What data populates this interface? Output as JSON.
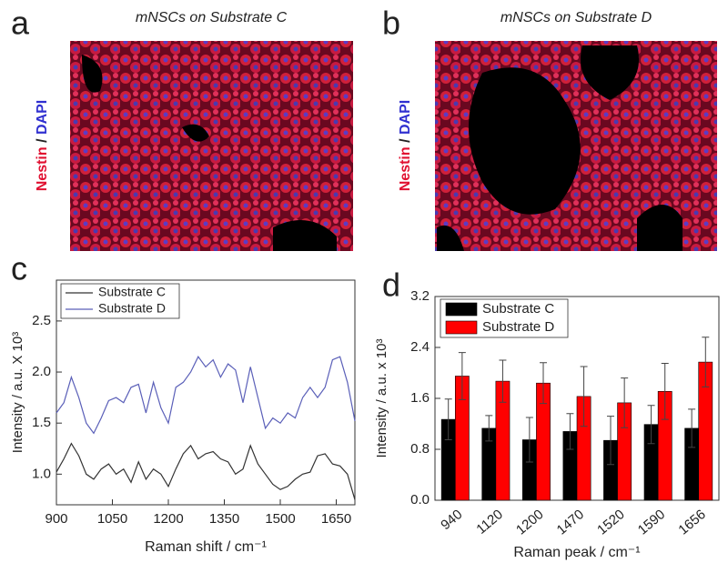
{
  "panels": [
    {
      "letter": "a",
      "title": "mNSCs on Substrate C",
      "stain": [
        "Nestin",
        "/",
        "DAPI"
      ]
    },
    {
      "letter": "b",
      "title": "mNSCs on Substrate D",
      "stain": [
        "Nestin",
        "/",
        "DAPI"
      ]
    }
  ],
  "chart_data": [
    {
      "type": "line",
      "panel": "c",
      "xlabel": "Raman shift / cm⁻¹",
      "ylabel": "Intensity / a.u. X 10³",
      "x": [
        900,
        920,
        940,
        960,
        980,
        1000,
        1020,
        1040,
        1060,
        1080,
        1100,
        1120,
        1140,
        1160,
        1180,
        1200,
        1220,
        1240,
        1260,
        1280,
        1300,
        1320,
        1340,
        1360,
        1380,
        1400,
        1420,
        1440,
        1460,
        1480,
        1500,
        1520,
        1540,
        1560,
        1580,
        1600,
        1620,
        1640,
        1660,
        1680,
        1700
      ],
      "series": [
        {
          "name": "Substrate C",
          "color": "#333333",
          "values": [
            1.02,
            1.15,
            1.3,
            1.18,
            1.0,
            0.95,
            1.05,
            1.1,
            1.0,
            1.05,
            0.92,
            1.12,
            0.95,
            1.05,
            1.0,
            0.88,
            1.05,
            1.2,
            1.28,
            1.15,
            1.2,
            1.22,
            1.15,
            1.12,
            1.0,
            1.05,
            1.28,
            1.1,
            1.0,
            0.9,
            0.85,
            0.88,
            0.95,
            1.0,
            1.02,
            1.18,
            1.2,
            1.1,
            1.08,
            1.0,
            0.75
          ]
        },
        {
          "name": "Substrate D",
          "color": "#5a5fb8",
          "values": [
            1.6,
            1.7,
            1.95,
            1.75,
            1.5,
            1.4,
            1.55,
            1.72,
            1.75,
            1.7,
            1.85,
            1.88,
            1.6,
            1.9,
            1.65,
            1.5,
            1.85,
            1.9,
            2.0,
            2.15,
            2.05,
            2.12,
            1.95,
            2.08,
            2.02,
            1.7,
            2.05,
            1.75,
            1.45,
            1.55,
            1.5,
            1.6,
            1.55,
            1.75,
            1.85,
            1.75,
            1.85,
            2.12,
            2.15,
            1.9,
            1.52
          ]
        }
      ],
      "xlim": [
        900,
        1700
      ],
      "xticks": [
        900,
        1050,
        1200,
        1350,
        1500,
        1650
      ],
      "ylim": [
        0.7,
        2.9
      ],
      "yticks": [
        {
          "value": 1,
          "label": "1.0"
        },
        1.5,
        {
          "value": 2,
          "label": "2.0"
        },
        2.5
      ],
      "legend": "top-left"
    },
    {
      "type": "bar",
      "panel": "d",
      "xlabel": "Raman peak / cm⁻¹",
      "ylabel": "Intensity / a.u. x 10³",
      "categories": [
        "940",
        "1120",
        "1200",
        "1470",
        "1520",
        "1590",
        "1656"
      ],
      "series": [
        {
          "name": "Substrate C",
          "color": "#000000",
          "values": [
            1.27,
            1.13,
            0.95,
            1.08,
            0.94,
            1.19,
            1.13
          ],
          "errors": [
            0.32,
            0.2,
            0.35,
            0.28,
            0.38,
            0.3,
            0.3
          ]
        },
        {
          "name": "Substrate D",
          "color": "#ff0000",
          "values": [
            1.95,
            1.87,
            1.84,
            1.63,
            1.53,
            1.71,
            2.17
          ],
          "errors": [
            0.37,
            0.33,
            0.32,
            0.47,
            0.39,
            0.44,
            0.39
          ]
        }
      ],
      "ylim": [
        0,
        3.2
      ],
      "yticks": [
        {
          "value": 0,
          "label": "0.0"
        },
        0.8,
        1.6,
        2.4,
        3.2
      ],
      "legend": "top-left"
    }
  ]
}
